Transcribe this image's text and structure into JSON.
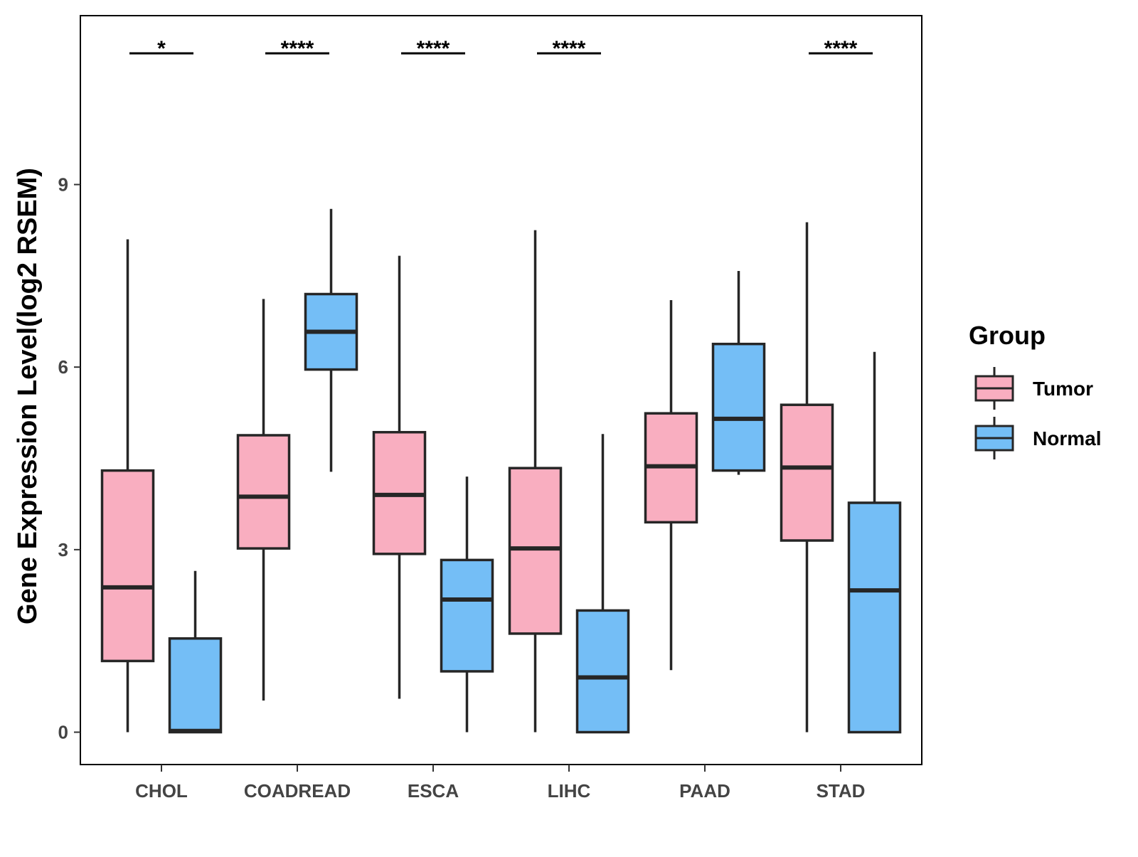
{
  "chart_data": {
    "type": "boxplot",
    "title": "",
    "xlabel": "",
    "ylabel": "Gene Expression Level(log2 RSEM)",
    "ylim": [
      -0.55,
      11.75
    ],
    "yticks": [
      0,
      3,
      6,
      9
    ],
    "grid": false,
    "categories": [
      "CHOL",
      "COADREAD",
      "ESCA",
      "LIHC",
      "PAAD",
      "STAD"
    ],
    "series": [
      {
        "name": "Tumor",
        "color": "#F9AEC0",
        "boxes": [
          {
            "min": 0.0,
            "q1": 1.17,
            "median": 2.38,
            "q3": 4.3,
            "max": 8.1
          },
          {
            "min": 0.52,
            "q1": 3.02,
            "median": 3.87,
            "q3": 4.88,
            "max": 7.12
          },
          {
            "min": 0.55,
            "q1": 2.93,
            "median": 3.9,
            "q3": 4.93,
            "max": 7.83
          },
          {
            "min": 0.0,
            "q1": 1.62,
            "median": 3.02,
            "q3": 4.34,
            "max": 8.25
          },
          {
            "min": 1.02,
            "q1": 3.45,
            "median": 4.37,
            "q3": 5.24,
            "max": 7.1
          },
          {
            "min": 0.0,
            "q1": 3.15,
            "median": 4.35,
            "q3": 5.38,
            "max": 8.38
          }
        ]
      },
      {
        "name": "Normal",
        "color": "#74BEF6",
        "boxes": [
          {
            "min": 0.0,
            "q1": 0.0,
            "median": 0.02,
            "q3": 1.54,
            "max": 2.65
          },
          {
            "min": 4.28,
            "q1": 5.96,
            "median": 6.58,
            "q3": 7.2,
            "max": 8.6
          },
          {
            "min": 0.0,
            "q1": 1.0,
            "median": 2.18,
            "q3": 2.83,
            "max": 4.2
          },
          {
            "min": 0.0,
            "q1": 0.0,
            "median": 0.9,
            "q3": 2.0,
            "max": 4.9
          },
          {
            "min": 4.23,
            "q1": 4.3,
            "median": 5.15,
            "q3": 6.38,
            "max": 7.58
          },
          {
            "min": 0.0,
            "q1": 0.0,
            "median": 2.33,
            "q3": 3.77,
            "max": 6.25
          }
        ]
      }
    ],
    "significance": [
      {
        "category": "CHOL",
        "label": "*"
      },
      {
        "category": "COADREAD",
        "label": "****"
      },
      {
        "category": "ESCA",
        "label": "****"
      },
      {
        "category": "LIHC",
        "label": "****"
      },
      {
        "category": "PAAD",
        "label": ""
      },
      {
        "category": "STAD",
        "label": "****"
      }
    ],
    "legend": {
      "title": "Group",
      "position": "right",
      "entries": [
        "Tumor",
        "Normal"
      ]
    }
  }
}
